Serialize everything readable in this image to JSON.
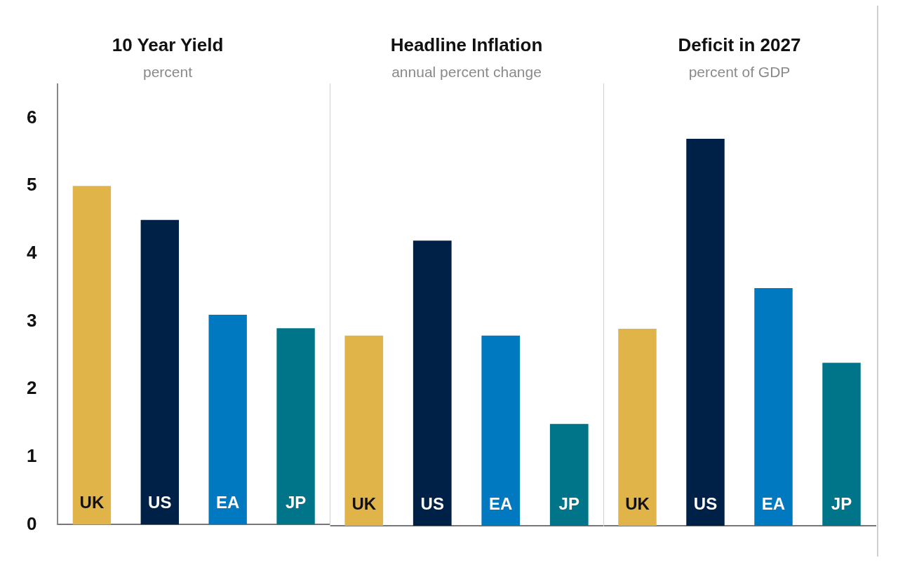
{
  "chart_data": [
    {
      "type": "bar",
      "title": "10 Year Yield",
      "subtitle": "percent",
      "categories": [
        "UK",
        "US",
        "EA",
        "JP"
      ],
      "values": [
        5.0,
        4.5,
        3.1,
        2.9
      ],
      "colors": [
        "#e1b44a",
        "#002147",
        "#0079c1",
        "#007589"
      ],
      "ylim": [
        0,
        6.5
      ],
      "yticks": [
        0,
        1,
        2,
        3,
        4,
        5,
        6
      ],
      "grid": false,
      "legend": false
    },
    {
      "type": "bar",
      "title": "Headline Inflation",
      "subtitle": "annual percent change",
      "categories": [
        "UK",
        "US",
        "EA",
        "JP"
      ],
      "values": [
        2.8,
        4.2,
        2.8,
        1.5
      ],
      "colors": [
        "#e1b44a",
        "#002147",
        "#0079c1",
        "#007589"
      ],
      "ylim": [
        0,
        6.5
      ],
      "yticks": [
        0,
        1,
        2,
        3,
        4,
        5,
        6
      ],
      "grid": false,
      "legend": false,
      "tick_labels": "x"
    },
    {
      "type": "bar",
      "title": "Deficit in 2027",
      "subtitle": "percent of GDP",
      "categories": [
        "UK",
        "US",
        "EA",
        "JP"
      ],
      "values": [
        2.9,
        5.7,
        3.5,
        2.4
      ],
      "colors": [
        "#e1b44a",
        "#002147",
        "#0079c1",
        "#007589"
      ],
      "ylim": [
        0,
        6.5
      ],
      "yticks": [
        0,
        1,
        2,
        3,
        4,
        5,
        6
      ],
      "grid": false,
      "legend": false,
      "tick_labels": "x"
    }
  ]
}
